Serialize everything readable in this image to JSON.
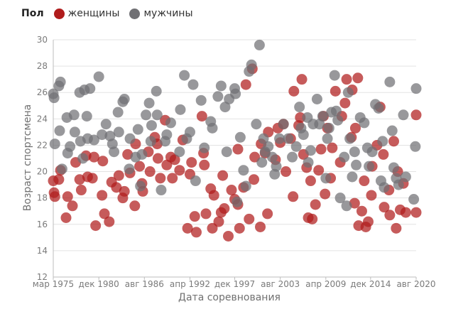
{
  "legend": {
    "title": "Пол",
    "items": [
      {
        "label": "женщины",
        "color": "#b01c1c"
      },
      {
        "label": "мужчины",
        "color": "#707074"
      }
    ]
  },
  "chart_data": {
    "type": "scatter",
    "xlabel": "Дата соревнования",
    "ylabel": "Возраст спортсмена",
    "ylim": [
      12,
      30
    ],
    "xlim": [
      1975.2,
      2020.6
    ],
    "grid": {
      "horizontal": true,
      "vertical": false
    },
    "legend_position": "top-left",
    "y_ticks": [
      12,
      14,
      16,
      18,
      20,
      22,
      24,
      26,
      28,
      30
    ],
    "x_ticks": [
      {
        "label": "мар 1975",
        "x": 1975.2
      },
      {
        "label": "дек 1980",
        "x": 1980.9
      },
      {
        "label": "авг 1986",
        "x": 1986.6
      },
      {
        "label": "апр 1992",
        "x": 1992.3
      },
      {
        "label": "дек 1997",
        "x": 1997.9
      },
      {
        "label": "авг 2003",
        "x": 2003.6
      },
      {
        "label": "апр 2009",
        "x": 2009.3
      },
      {
        "label": "дек 2014",
        "x": 2014.9
      },
      {
        "label": "авг 2020",
        "x": 2020.6
      }
    ],
    "series": [
      {
        "name": "женщины",
        "color": "#b01c1c",
        "points": [
          [
            1975.2,
            19.3
          ],
          [
            1975.3,
            18.4
          ],
          [
            1975.4,
            18.1
          ],
          [
            1975.9,
            19.4
          ],
          [
            1976.1,
            20.1
          ],
          [
            1976.8,
            16.5
          ],
          [
            1977.0,
            18.1
          ],
          [
            1977.6,
            17.4
          ],
          [
            1978.0,
            20.7
          ],
          [
            1978.5,
            19.4
          ],
          [
            1978.7,
            18.6
          ],
          [
            1979.3,
            21.2
          ],
          [
            1979.5,
            19.6
          ],
          [
            1980.1,
            19.5
          ],
          [
            1980.3,
            21.1
          ],
          [
            1980.5,
            15.9
          ],
          [
            1981.3,
            18.2
          ],
          [
            1981.4,
            20.8
          ],
          [
            1981.6,
            16.8
          ],
          [
            1982.2,
            16.2
          ],
          [
            1982.5,
            19.2
          ],
          [
            1983.1,
            18.8
          ],
          [
            1983.4,
            19.7
          ],
          [
            1983.9,
            18.0
          ],
          [
            1984.1,
            18.5
          ],
          [
            1984.5,
            21.3
          ],
          [
            1984.8,
            19.9
          ],
          [
            1985.4,
            17.4
          ],
          [
            1985.5,
            22.1
          ],
          [
            1986.0,
            20.4
          ],
          [
            1986.3,
            19.1
          ],
          [
            1986.4,
            18.5
          ],
          [
            1987.1,
            21.5
          ],
          [
            1987.3,
            20.0
          ],
          [
            1987.9,
            22.6
          ],
          [
            1988.2,
            22.1
          ],
          [
            1988.3,
            21.0
          ],
          [
            1988.6,
            19.5
          ],
          [
            1989.2,
            23.9
          ],
          [
            1989.4,
            20.5
          ],
          [
            1989.9,
            21.1
          ],
          [
            1990.1,
            19.5
          ],
          [
            1990.4,
            20.9
          ],
          [
            1991.0,
            20.1
          ],
          [
            1991.4,
            22.4
          ],
          [
            1992.0,
            15.7
          ],
          [
            1992.3,
            19.8
          ],
          [
            1992.5,
            20.7
          ],
          [
            1992.9,
            16.6
          ],
          [
            1993.1,
            15.4
          ],
          [
            1993.8,
            24.2
          ],
          [
            1994.0,
            21.4
          ],
          [
            1994.1,
            20.5
          ],
          [
            1994.3,
            16.8
          ],
          [
            1994.9,
            18.7
          ],
          [
            1995.1,
            15.7
          ],
          [
            1995.3,
            18.2
          ],
          [
            1995.9,
            16.2
          ],
          [
            1996.2,
            16.9
          ],
          [
            1996.4,
            19.7
          ],
          [
            1996.6,
            17.2
          ],
          [
            1997.1,
            15.1
          ],
          [
            1997.5,
            18.6
          ],
          [
            1997.9,
            17.9
          ],
          [
            1998.3,
            21.7
          ],
          [
            1998.3,
            17.5
          ],
          [
            1998.5,
            15.7
          ],
          [
            1999.0,
            18.8
          ],
          [
            1999.3,
            26.6
          ],
          [
            1999.7,
            16.4
          ],
          [
            2000.1,
            27.8
          ],
          [
            2000.3,
            19.4
          ],
          [
            2000.4,
            21.1
          ],
          [
            2001.1,
            15.8
          ],
          [
            2001.2,
            22.1
          ],
          [
            2001.7,
            21.4
          ],
          [
            2002.0,
            16.8
          ],
          [
            2002.1,
            23.0
          ],
          [
            2003.0,
            20.9
          ],
          [
            2003.3,
            23.3
          ],
          [
            2003.6,
            22.2
          ],
          [
            2004.0,
            23.6
          ],
          [
            2004.3,
            20.0
          ],
          [
            2004.9,
            22.5
          ],
          [
            2005.2,
            18.1
          ],
          [
            2005.3,
            26.1
          ],
          [
            2005.9,
            23.5
          ],
          [
            2006.1,
            24.1
          ],
          [
            2006.3,
            27.0
          ],
          [
            2006.5,
            21.3
          ],
          [
            2006.9,
            20.3
          ],
          [
            2007.1,
            16.5
          ],
          [
            2007.4,
            19.3
          ],
          [
            2007.6,
            16.4
          ],
          [
            2008.0,
            17.5
          ],
          [
            2008.4,
            20.1
          ],
          [
            2008.7,
            21.7
          ],
          [
            2009.0,
            24.2
          ],
          [
            2009.2,
            18.3
          ],
          [
            2009.5,
            23.3
          ],
          [
            2009.9,
            19.5
          ],
          [
            2010.1,
            21.8
          ],
          [
            2010.5,
            26.1
          ],
          [
            2011.1,
            20.7
          ],
          [
            2011.3,
            24.2
          ],
          [
            2011.7,
            25.2
          ],
          [
            2011.9,
            27.0
          ],
          [
            2012.5,
            22.6
          ],
          [
            2012.6,
            26.2
          ],
          [
            2012.9,
            17.6
          ],
          [
            2013.0,
            23.3
          ],
          [
            2013.3,
            27.1
          ],
          [
            2013.4,
            15.9
          ],
          [
            2013.8,
            17.0
          ],
          [
            2014.1,
            19.3
          ],
          [
            2014.3,
            15.8
          ],
          [
            2014.6,
            16.2
          ],
          [
            2015.0,
            18.2
          ],
          [
            2015.1,
            20.4
          ],
          [
            2015.7,
            22.0
          ],
          [
            2016.1,
            24.9
          ],
          [
            2016.5,
            21.3
          ],
          [
            2016.6,
            17.3
          ],
          [
            2017.2,
            18.6
          ],
          [
            2017.3,
            16.7
          ],
          [
            2017.8,
            22.3
          ],
          [
            2018.1,
            15.7
          ],
          [
            2018.3,
            20.0
          ],
          [
            2018.6,
            17.1
          ],
          [
            2019.0,
            19.1
          ],
          [
            2019.3,
            16.9
          ],
          [
            2020.6,
            24.3
          ],
          [
            2020.6,
            16.9
          ]
        ]
      },
      {
        "name": "мужчины",
        "color": "#707074",
        "points": [
          [
            1975.2,
            25.9
          ],
          [
            1975.3,
            25.6
          ],
          [
            1975.4,
            22.1
          ],
          [
            1975.9,
            26.5
          ],
          [
            1976.1,
            26.8
          ],
          [
            1976.0,
            23.1
          ],
          [
            1976.3,
            20.2
          ],
          [
            1976.9,
            24.1
          ],
          [
            1977.0,
            21.4
          ],
          [
            1977.3,
            21.9
          ],
          [
            1977.8,
            24.3
          ],
          [
            1977.9,
            23.0
          ],
          [
            1978.5,
            26.0
          ],
          [
            1978.6,
            22.3
          ],
          [
            1978.9,
            21.0
          ],
          [
            1979.1,
            26.2
          ],
          [
            1979.4,
            24.2
          ],
          [
            1979.5,
            22.5
          ],
          [
            1979.8,
            26.3
          ],
          [
            1980.3,
            22.4
          ],
          [
            1980.9,
            27.2
          ],
          [
            1981.3,
            22.8
          ],
          [
            1981.8,
            23.6
          ],
          [
            1982.3,
            22.7
          ],
          [
            1982.6,
            22.1
          ],
          [
            1982.8,
            21.5
          ],
          [
            1983.3,
            24.5
          ],
          [
            1983.4,
            23.0
          ],
          [
            1983.9,
            25.3
          ],
          [
            1984.1,
            25.5
          ],
          [
            1984.7,
            20.2
          ],
          [
            1984.8,
            22.5
          ],
          [
            1985.5,
            21.1
          ],
          [
            1985.8,
            23.2
          ],
          [
            1986.1,
            18.9
          ],
          [
            1986.3,
            21.3
          ],
          [
            1986.8,
            24.3
          ],
          [
            1987.2,
            25.2
          ],
          [
            1987.4,
            22.3
          ],
          [
            1987.5,
            23.5
          ],
          [
            1988.1,
            26.1
          ],
          [
            1988.2,
            24.3
          ],
          [
            1988.7,
            18.6
          ],
          [
            1989.2,
            22.3
          ],
          [
            1989.4,
            22.8
          ],
          [
            1989.9,
            23.7
          ],
          [
            1991.0,
            21.5
          ],
          [
            1991.1,
            24.7
          ],
          [
            1991.6,
            27.3
          ],
          [
            1991.9,
            22.5
          ],
          [
            1992.3,
            23.0
          ],
          [
            1992.7,
            26.6
          ],
          [
            1993.0,
            19.3
          ],
          [
            1993.7,
            25.4
          ],
          [
            1994.1,
            21.8
          ],
          [
            1994.9,
            23.8
          ],
          [
            1995.1,
            23.3
          ],
          [
            1995.8,
            25.7
          ],
          [
            1996.2,
            26.5
          ],
          [
            1996.7,
            24.9
          ],
          [
            1996.9,
            21.5
          ],
          [
            1997.2,
            25.5
          ],
          [
            1997.9,
            26.3
          ],
          [
            1998.0,
            25.9
          ],
          [
            1998.2,
            17.7
          ],
          [
            1998.6,
            22.6
          ],
          [
            1999.0,
            20.1
          ],
          [
            1999.3,
            18.9
          ],
          [
            1999.7,
            27.6
          ],
          [
            2000.0,
            28.1
          ],
          [
            2000.6,
            23.6
          ],
          [
            2001.0,
            29.6
          ],
          [
            2001.3,
            20.7
          ],
          [
            2001.5,
            22.5
          ],
          [
            2001.7,
            21.5
          ],
          [
            2002.1,
            21.9
          ],
          [
            2002.6,
            21.1
          ],
          [
            2002.9,
            19.8
          ],
          [
            2003.1,
            20.4
          ],
          [
            2003.5,
            22.5
          ],
          [
            2004.0,
            23.6
          ],
          [
            2004.6,
            22.5
          ],
          [
            2005.1,
            21.1
          ],
          [
            2005.6,
            21.9
          ],
          [
            2006.0,
            24.9
          ],
          [
            2006.2,
            23.3
          ],
          [
            2006.5,
            22.8
          ],
          [
            2007.0,
            24.1
          ],
          [
            2007.1,
            20.7
          ],
          [
            2007.4,
            21.6
          ],
          [
            2007.7,
            23.6
          ],
          [
            2008.2,
            25.5
          ],
          [
            2008.5,
            23.6
          ],
          [
            2008.9,
            24.2
          ],
          [
            2009.3,
            19.5
          ],
          [
            2009.5,
            22.5
          ],
          [
            2009.7,
            23.3
          ],
          [
            2010.0,
            24.5
          ],
          [
            2010.4,
            27.3
          ],
          [
            2010.6,
            24.6
          ],
          [
            2010.8,
            23.9
          ],
          [
            2011.1,
            18.0
          ],
          [
            2011.6,
            21.1
          ],
          [
            2011.9,
            17.4
          ],
          [
            2012.1,
            26.0
          ],
          [
            2012.3,
            22.5
          ],
          [
            2012.6,
            19.6
          ],
          [
            2012.9,
            21.5
          ],
          [
            2013.1,
            20.5
          ],
          [
            2013.6,
            24.1
          ],
          [
            2014.1,
            23.7
          ],
          [
            2014.5,
            21.8
          ],
          [
            2014.7,
            20.4
          ],
          [
            2015.1,
            21.5
          ],
          [
            2015.5,
            25.1
          ],
          [
            2015.9,
            24.8
          ],
          [
            2016.2,
            19.3
          ],
          [
            2016.4,
            22.3
          ],
          [
            2016.6,
            18.8
          ],
          [
            2017.3,
            26.8
          ],
          [
            2017.6,
            23.1
          ],
          [
            2017.8,
            20.3
          ],
          [
            2018.1,
            19.5
          ],
          [
            2018.4,
            19.0
          ],
          [
            2019.0,
            24.3
          ],
          [
            2019.3,
            19.6
          ],
          [
            2020.3,
            17.9
          ],
          [
            2020.5,
            21.9
          ],
          [
            2020.6,
            26.3
          ]
        ]
      }
    ]
  }
}
